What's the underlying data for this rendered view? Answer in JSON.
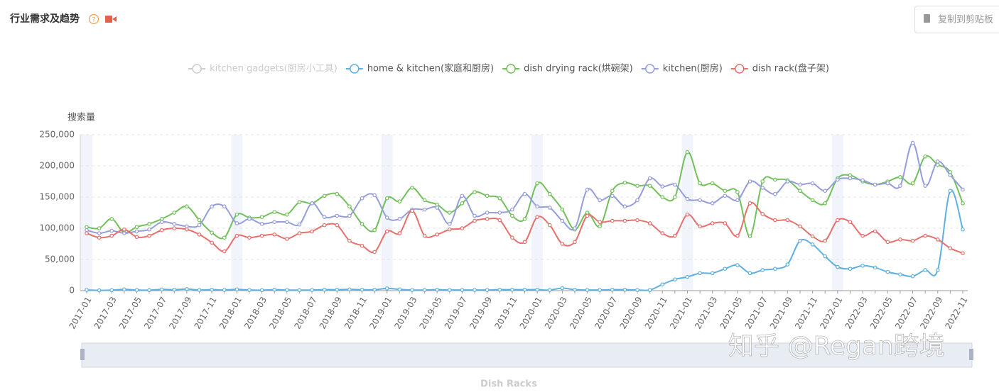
{
  "header": {
    "title": "行业需求及趋势",
    "button": "复制到剪贴板"
  },
  "chart_data": {
    "type": "line",
    "y_label": "搜索量",
    "x_label": "Dish Racks",
    "watermark": "知乎 @Regan跨境",
    "smooth": true,
    "grid": true,
    "ylim": [
      0,
      250000
    ],
    "yticks": [
      0,
      {
        "value": 50000,
        "label": "50,000"
      },
      {
        "value": 100000,
        "label": "100,000"
      },
      {
        "value": 150000,
        "label": "150,000"
      },
      {
        "value": 200000,
        "label": "200,000"
      },
      {
        "value": 250000,
        "label": "250,000"
      }
    ],
    "categories": [
      "2017-01",
      null,
      "2017-03",
      null,
      "2017-05",
      null,
      "2017-07",
      null,
      "2017-09",
      null,
      "2017-11",
      null,
      "2018-01",
      null,
      "2018-03",
      null,
      "2018-05",
      null,
      "2018-07",
      null,
      "2018-09",
      null,
      "2018-11",
      null,
      "2019-01",
      null,
      "2019-03",
      null,
      "2019-05",
      null,
      "2019-07",
      null,
      "2019-09",
      null,
      "2019-11",
      null,
      "2020-01",
      null,
      "2020-03",
      null,
      "2020-05",
      null,
      "2020-07",
      null,
      "2020-09",
      null,
      "2020-11",
      null,
      "2021-01",
      null,
      "2021-03",
      null,
      "2021-05",
      null,
      "2021-07",
      null,
      "2021-09",
      null,
      "2021-11",
      null,
      "2022-01",
      null,
      "2022-03",
      null,
      "2022-05",
      null,
      "2022-07",
      null,
      "2022-09",
      null,
      "2022-11"
    ],
    "series": [
      {
        "name": "kitchen gadgets(厨房小工具)",
        "color": "#cccccc",
        "visible": false
      },
      {
        "name": "home & kitchen(家庭和厨房)",
        "color": "#5fb0e0",
        "values": [
          1000,
          500,
          800,
          2000,
          1000,
          800,
          2000,
          1500,
          2500,
          1000,
          1500,
          1000,
          2000,
          1000,
          800,
          1500,
          1000,
          800,
          1000,
          1500,
          1500,
          2000,
          1500,
          1500,
          3500,
          2000,
          1000,
          1000,
          1500,
          1000,
          1000,
          1000,
          1000,
          1500,
          1500,
          1500,
          1500,
          1000,
          4000,
          1500,
          1000,
          1000,
          1500,
          1500,
          1000,
          1000,
          10000,
          18000,
          22000,
          28000,
          28000,
          35000,
          41000,
          28000,
          33000,
          35000,
          42000,
          80000,
          74000,
          55000,
          38000,
          35000,
          40000,
          37000,
          30000,
          26000,
          23000,
          33000,
          33000,
          160000,
          98000
        ]
      },
      {
        "name": "dish drying rack(烘碗架)",
        "color": "#72c05b",
        "values": [
          102000,
          100000,
          115000,
          93000,
          102000,
          107000,
          115000,
          125000,
          135000,
          113000,
          93000,
          85000,
          122000,
          117000,
          118000,
          126000,
          122000,
          142000,
          140000,
          152000,
          155000,
          135000,
          107000,
          97000,
          148000,
          143000,
          165000,
          145000,
          138000,
          125000,
          140000,
          158000,
          152000,
          148000,
          120000,
          115000,
          172000,
          155000,
          130000,
          98000,
          125000,
          103000,
          160000,
          173000,
          168000,
          168000,
          150000,
          150000,
          222000,
          172000,
          172000,
          160000,
          158000,
          87000,
          175000,
          178000,
          177000,
          160000,
          145000,
          140000,
          180000,
          185000,
          175000,
          170000,
          175000,
          182000,
          172000,
          215000,
          202000,
          190000,
          140000
        ]
      },
      {
        "name": "kitchen(厨房)",
        "color": "#959ddb",
        "values": [
          97000,
          92000,
          96000,
          92000,
          95000,
          98000,
          110000,
          107000,
          103000,
          105000,
          135000,
          135000,
          108000,
          115000,
          107000,
          110000,
          110000,
          106000,
          140000,
          118000,
          120000,
          120000,
          148000,
          153000,
          117000,
          115000,
          130000,
          130000,
          133000,
          107000,
          152000,
          120000,
          125000,
          125000,
          130000,
          155000,
          135000,
          133000,
          112000,
          100000,
          162000,
          145000,
          152000,
          135000,
          145000,
          180000,
          167000,
          170000,
          147000,
          145000,
          140000,
          152000,
          145000,
          175000,
          165000,
          155000,
          175000,
          170000,
          172000,
          160000,
          178000,
          180000,
          177000,
          170000,
          172000,
          168000,
          237000,
          168000,
          207000,
          185000,
          162000
        ]
      },
      {
        "name": "dish rack(盘子架)",
        "color": "#e5706c",
        "values": [
          92000,
          85000,
          88000,
          98000,
          86000,
          88000,
          97000,
          100000,
          98000,
          90000,
          77000,
          63000,
          88000,
          85000,
          88000,
          90000,
          83000,
          92000,
          95000,
          105000,
          105000,
          80000,
          72000,
          62000,
          95000,
          92000,
          128000,
          88000,
          90000,
          98000,
          100000,
          112000,
          115000,
          113000,
          85000,
          78000,
          118000,
          105000,
          75000,
          78000,
          120000,
          110000,
          112000,
          112000,
          113000,
          108000,
          92000,
          88000,
          122000,
          103000,
          108000,
          108000,
          88000,
          140000,
          123000,
          113000,
          113000,
          103000,
          87000,
          80000,
          113000,
          110000,
          88000,
          95000,
          78000,
          82000,
          80000,
          88000,
          82000,
          68000,
          60000
        ]
      }
    ]
  }
}
